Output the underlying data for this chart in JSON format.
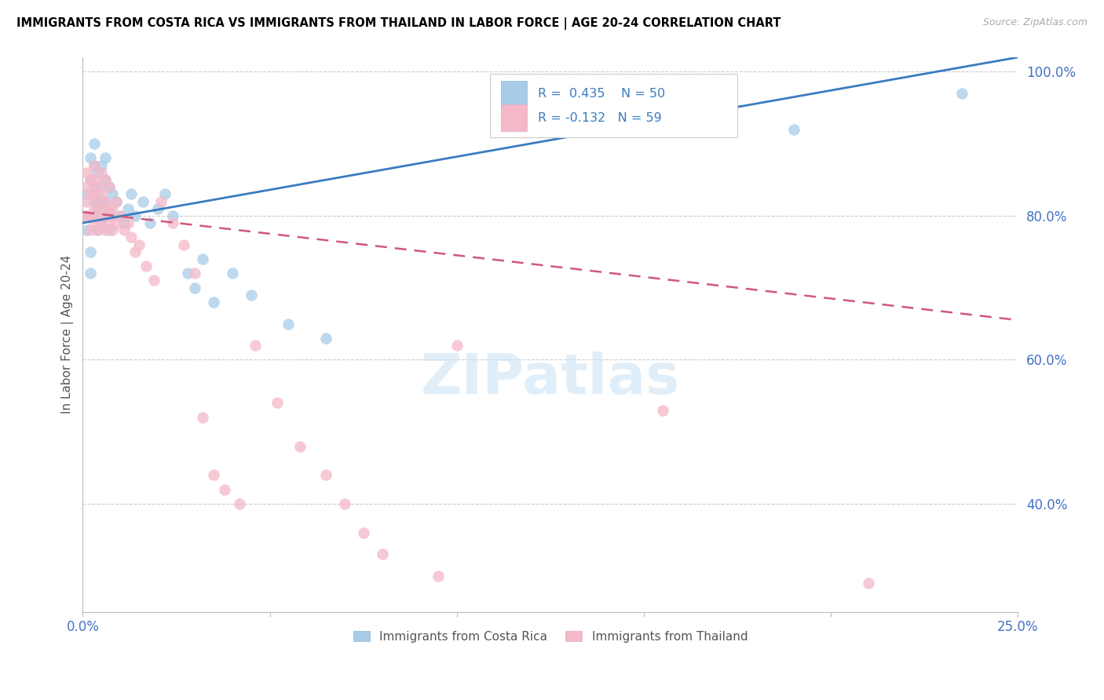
{
  "title": "IMMIGRANTS FROM COSTA RICA VS IMMIGRANTS FROM THAILAND IN LABOR FORCE | AGE 20-24 CORRELATION CHART",
  "source": "Source: ZipAtlas.com",
  "ylabel": "In Labor Force | Age 20-24",
  "x_min": 0.0,
  "x_max": 0.25,
  "y_min": 0.25,
  "y_max": 1.02,
  "costa_rica_R": 0.435,
  "costa_rica_N": 50,
  "thailand_R": -0.132,
  "thailand_N": 59,
  "costa_rica_color": "#a8cce8",
  "costa_rica_line_color": "#3a7cc0",
  "thailand_color": "#f5b8c8",
  "thailand_line_color": "#d05878",
  "legend_label_cr": "Immigrants from Costa Rica",
  "legend_label_th": "Immigrants from Thailand",
  "cr_trend_x0": 0.0,
  "cr_trend_y0": 0.79,
  "cr_trend_x1": 0.25,
  "cr_trend_y1": 1.02,
  "th_trend_x0": 0.0,
  "th_trend_y0": 0.805,
  "th_trend_x1": 0.25,
  "th_trend_y1": 0.655,
  "costa_rica_x": [
    0.001,
    0.001,
    0.001,
    0.002,
    0.002,
    0.002,
    0.002,
    0.003,
    0.003,
    0.003,
    0.003,
    0.003,
    0.004,
    0.004,
    0.004,
    0.004,
    0.005,
    0.005,
    0.005,
    0.005,
    0.006,
    0.006,
    0.006,
    0.006,
    0.007,
    0.007,
    0.007,
    0.008,
    0.008,
    0.009,
    0.01,
    0.011,
    0.012,
    0.013,
    0.014,
    0.016,
    0.018,
    0.02,
    0.022,
    0.024,
    0.028,
    0.03,
    0.032,
    0.035,
    0.04,
    0.045,
    0.055,
    0.065,
    0.19,
    0.235
  ],
  "costa_rica_y": [
    0.78,
    0.8,
    0.83,
    0.72,
    0.75,
    0.85,
    0.88,
    0.8,
    0.82,
    0.84,
    0.87,
    0.9,
    0.78,
    0.81,
    0.83,
    0.86,
    0.79,
    0.82,
    0.84,
    0.87,
    0.8,
    0.82,
    0.85,
    0.88,
    0.78,
    0.81,
    0.84,
    0.8,
    0.83,
    0.82,
    0.8,
    0.79,
    0.81,
    0.83,
    0.8,
    0.82,
    0.79,
    0.81,
    0.83,
    0.8,
    0.72,
    0.7,
    0.74,
    0.68,
    0.72,
    0.69,
    0.65,
    0.63,
    0.92,
    0.97
  ],
  "thailand_x": [
    0.001,
    0.001,
    0.001,
    0.001,
    0.002,
    0.002,
    0.002,
    0.002,
    0.003,
    0.003,
    0.003,
    0.003,
    0.003,
    0.004,
    0.004,
    0.004,
    0.004,
    0.005,
    0.005,
    0.005,
    0.005,
    0.006,
    0.006,
    0.006,
    0.006,
    0.007,
    0.007,
    0.007,
    0.008,
    0.008,
    0.009,
    0.009,
    0.01,
    0.011,
    0.012,
    0.013,
    0.014,
    0.015,
    0.017,
    0.019,
    0.021,
    0.024,
    0.027,
    0.03,
    0.032,
    0.035,
    0.038,
    0.042,
    0.046,
    0.052,
    0.058,
    0.065,
    0.07,
    0.075,
    0.08,
    0.095,
    0.1,
    0.155,
    0.21
  ],
  "thailand_y": [
    0.8,
    0.82,
    0.84,
    0.86,
    0.78,
    0.8,
    0.83,
    0.85,
    0.79,
    0.81,
    0.83,
    0.85,
    0.87,
    0.78,
    0.8,
    0.82,
    0.84,
    0.79,
    0.81,
    0.83,
    0.86,
    0.78,
    0.8,
    0.82,
    0.85,
    0.79,
    0.81,
    0.84,
    0.78,
    0.81,
    0.79,
    0.82,
    0.8,
    0.78,
    0.79,
    0.77,
    0.75,
    0.76,
    0.73,
    0.71,
    0.82,
    0.79,
    0.76,
    0.72,
    0.52,
    0.44,
    0.42,
    0.4,
    0.62,
    0.54,
    0.48,
    0.44,
    0.4,
    0.36,
    0.33,
    0.3,
    0.62,
    0.53,
    0.29
  ]
}
